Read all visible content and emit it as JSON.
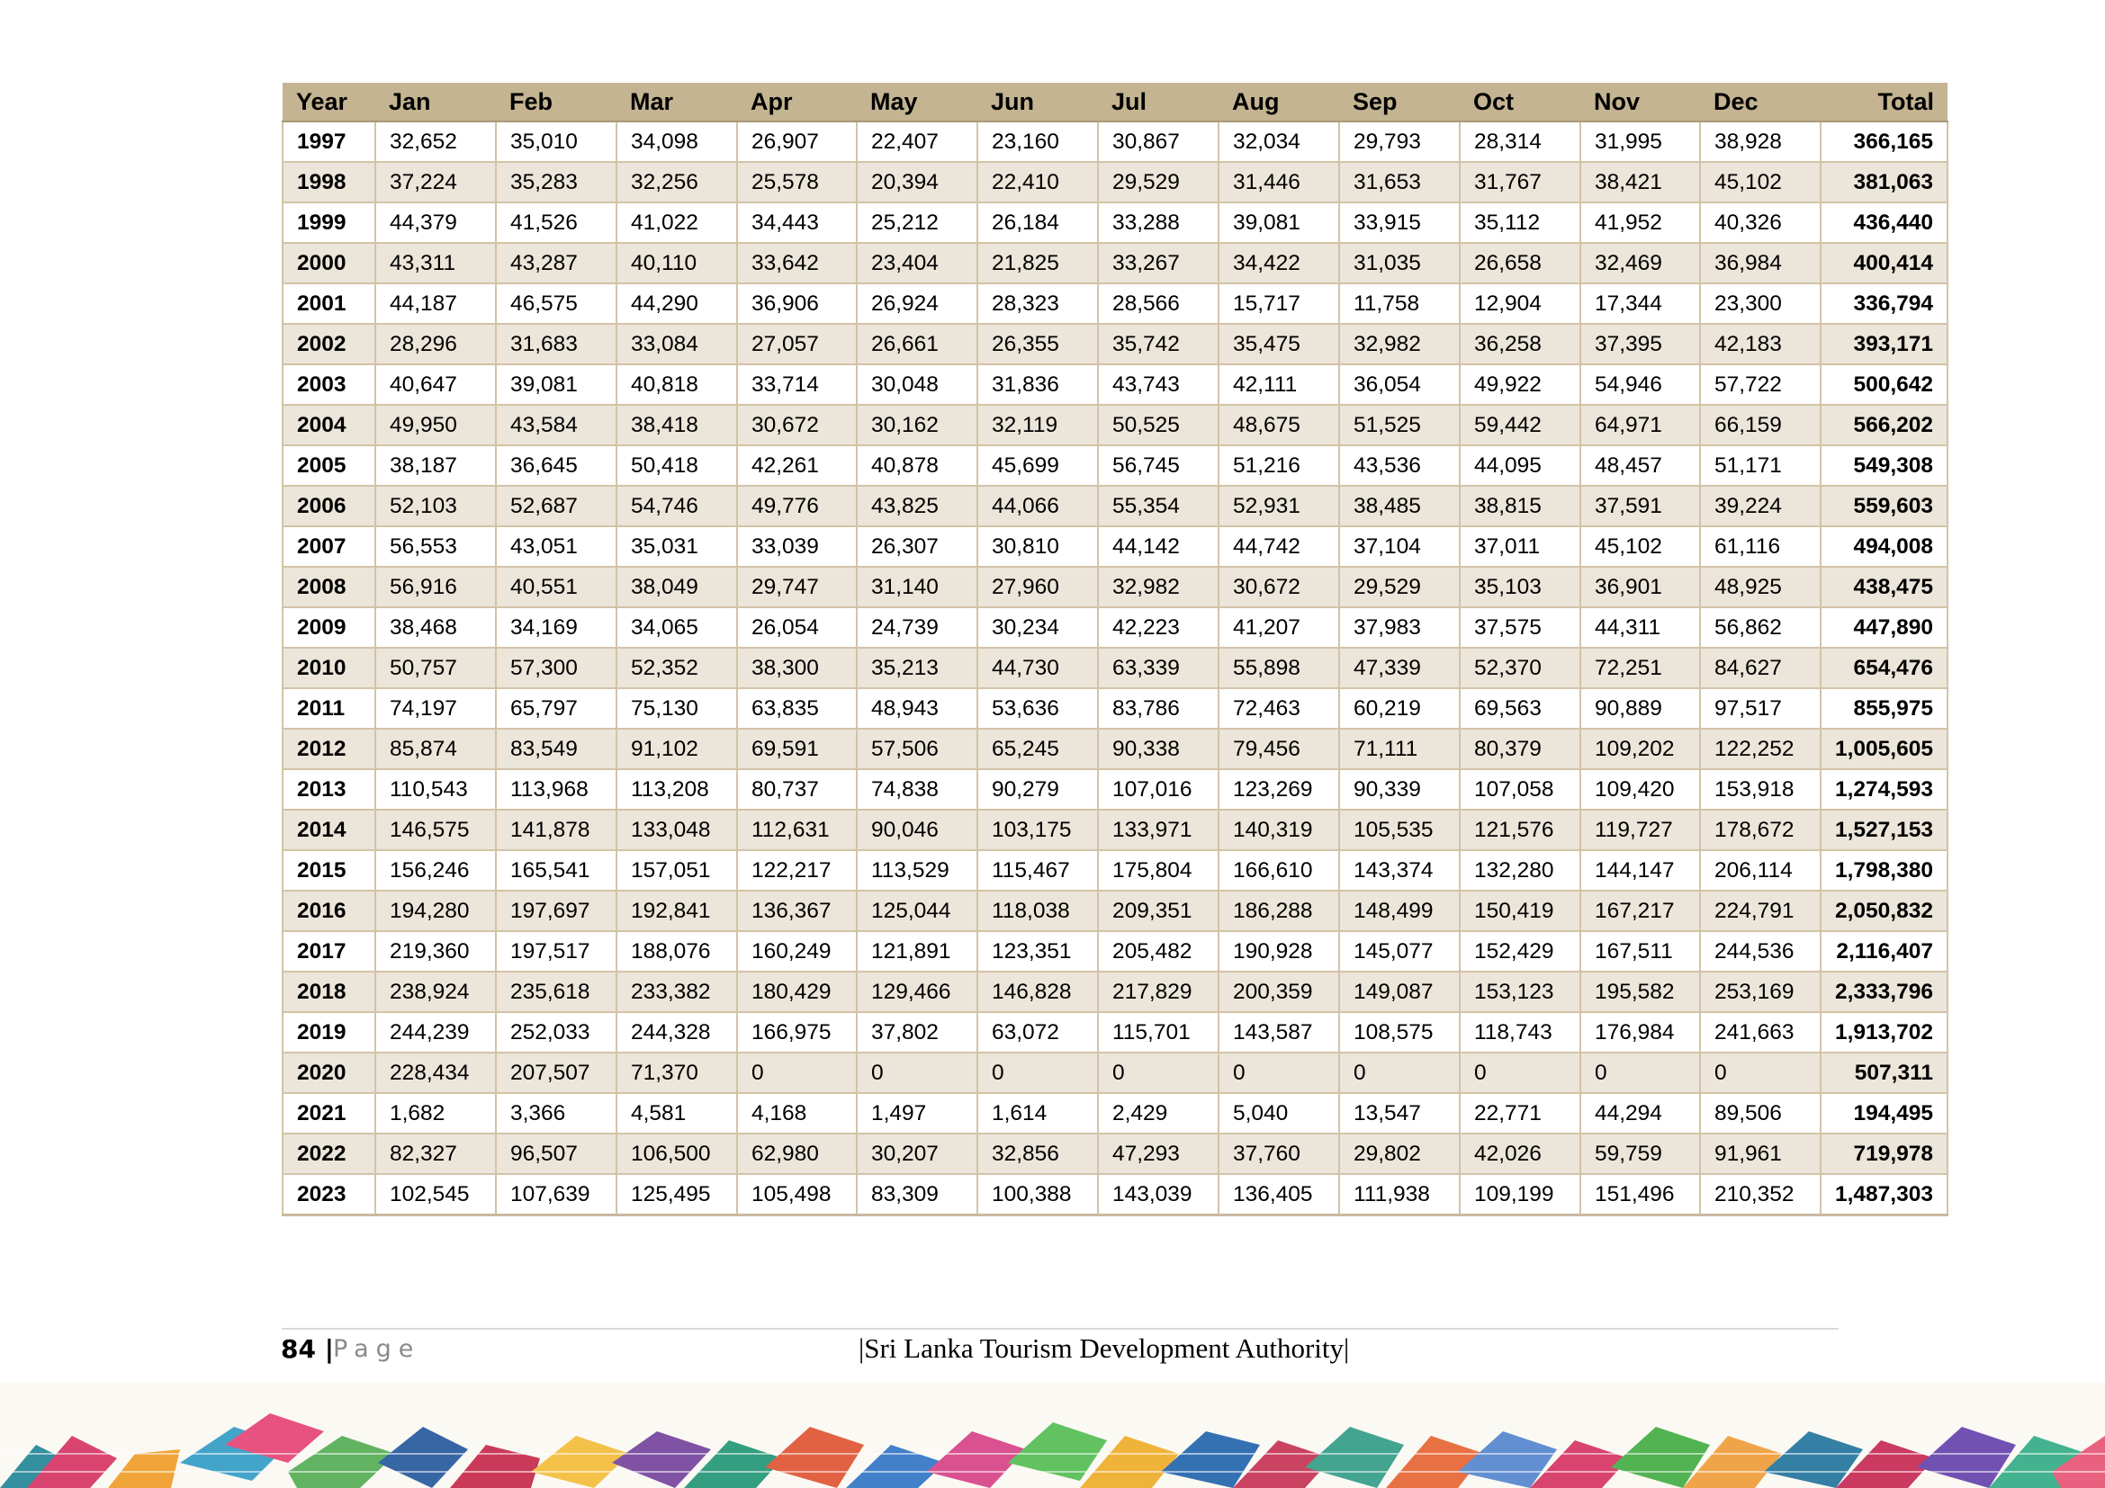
{
  "table": {
    "headers": [
      "Year",
      "Jan",
      "Feb",
      "Mar",
      "Apr",
      "May",
      "Jun",
      "Jul",
      "Aug",
      "Sep",
      "Oct",
      "Nov",
      "Dec",
      "Total"
    ],
    "rows": [
      [
        "1997",
        "32,652",
        "35,010",
        "34,098",
        "26,907",
        "22,407",
        "23,160",
        "30,867",
        "32,034",
        "29,793",
        "28,314",
        "31,995",
        "38,928",
        "366,165"
      ],
      [
        "1998",
        "37,224",
        "35,283",
        "32,256",
        "25,578",
        "20,394",
        "22,410",
        "29,529",
        "31,446",
        "31,653",
        "31,767",
        "38,421",
        "45,102",
        "381,063"
      ],
      [
        "1999",
        "44,379",
        "41,526",
        "41,022",
        "34,443",
        "25,212",
        "26,184",
        "33,288",
        "39,081",
        "33,915",
        "35,112",
        "41,952",
        "40,326",
        "436,440"
      ],
      [
        "2000",
        "43,311",
        "43,287",
        "40,110",
        "33,642",
        "23,404",
        "21,825",
        "33,267",
        "34,422",
        "31,035",
        "26,658",
        "32,469",
        "36,984",
        "400,414"
      ],
      [
        "2001",
        "44,187",
        "46,575",
        "44,290",
        "36,906",
        "26,924",
        "28,323",
        "28,566",
        "15,717",
        "11,758",
        "12,904",
        "17,344",
        "23,300",
        "336,794"
      ],
      [
        "2002",
        "28,296",
        "31,683",
        "33,084",
        "27,057",
        "26,661",
        "26,355",
        "35,742",
        "35,475",
        "32,982",
        "36,258",
        "37,395",
        "42,183",
        "393,171"
      ],
      [
        "2003",
        "40,647",
        "39,081",
        "40,818",
        "33,714",
        "30,048",
        "31,836",
        "43,743",
        "42,111",
        "36,054",
        "49,922",
        "54,946",
        "57,722",
        "500,642"
      ],
      [
        "2004",
        "49,950",
        "43,584",
        "38,418",
        "30,672",
        "30,162",
        "32,119",
        "50,525",
        "48,675",
        "51,525",
        "59,442",
        "64,971",
        "66,159",
        "566,202"
      ],
      [
        "2005",
        "38,187",
        "36,645",
        "50,418",
        "42,261",
        "40,878",
        "45,699",
        "56,745",
        "51,216",
        "43,536",
        "44,095",
        "48,457",
        "51,171",
        "549,308"
      ],
      [
        "2006",
        "52,103",
        "52,687",
        "54,746",
        "49,776",
        "43,825",
        "44,066",
        "55,354",
        "52,931",
        "38,485",
        "38,815",
        "37,591",
        "39,224",
        "559,603"
      ],
      [
        "2007",
        "56,553",
        "43,051",
        "35,031",
        "33,039",
        "26,307",
        "30,810",
        "44,142",
        "44,742",
        "37,104",
        "37,011",
        "45,102",
        "61,116",
        "494,008"
      ],
      [
        "2008",
        "56,916",
        "40,551",
        "38,049",
        "29,747",
        "31,140",
        "27,960",
        "32,982",
        "30,672",
        "29,529",
        "35,103",
        "36,901",
        "48,925",
        "438,475"
      ],
      [
        "2009",
        "38,468",
        "34,169",
        "34,065",
        "26,054",
        "24,739",
        "30,234",
        "42,223",
        "41,207",
        "37,983",
        "37,575",
        "44,311",
        "56,862",
        "447,890"
      ],
      [
        "2010",
        "50,757",
        "57,300",
        "52,352",
        "38,300",
        "35,213",
        "44,730",
        "63,339",
        "55,898",
        "47,339",
        "52,370",
        "72,251",
        "84,627",
        "654,476"
      ],
      [
        "2011",
        "74,197",
        "65,797",
        "75,130",
        "63,835",
        "48,943",
        "53,636",
        "83,786",
        "72,463",
        "60,219",
        "69,563",
        "90,889",
        "97,517",
        "855,975"
      ],
      [
        "2012",
        "85,874",
        "83,549",
        "91,102",
        "69,591",
        "57,506",
        "65,245",
        "90,338",
        "79,456",
        "71,111",
        "80,379",
        "109,202",
        "122,252",
        "1,005,605"
      ],
      [
        "2013",
        "110,543",
        "113,968",
        "113,208",
        "80,737",
        "74,838",
        "90,279",
        "107,016",
        "123,269",
        "90,339",
        "107,058",
        "109,420",
        "153,918",
        "1,274,593"
      ],
      [
        "2014",
        "146,575",
        "141,878",
        "133,048",
        "112,631",
        "90,046",
        "103,175",
        "133,971",
        "140,319",
        "105,535",
        "121,576",
        "119,727",
        "178,672",
        "1,527,153"
      ],
      [
        "2015",
        "156,246",
        "165,541",
        "157,051",
        "122,217",
        "113,529",
        "115,467",
        "175,804",
        "166,610",
        "143,374",
        "132,280",
        "144,147",
        "206,114",
        "1,798,380"
      ],
      [
        "2016",
        "194,280",
        "197,697",
        "192,841",
        "136,367",
        "125,044",
        "118,038",
        "209,351",
        "186,288",
        "148,499",
        "150,419",
        "167,217",
        "224,791",
        "2,050,832"
      ],
      [
        "2017",
        "219,360",
        "197,517",
        "188,076",
        "160,249",
        "121,891",
        "123,351",
        "205,482",
        "190,928",
        "145,077",
        "152,429",
        "167,511",
        "244,536",
        "2,116,407"
      ],
      [
        "2018",
        "238,924",
        "235,618",
        "233,382",
        "180,429",
        "129,466",
        "146,828",
        "217,829",
        "200,359",
        "149,087",
        "153,123",
        "195,582",
        "253,169",
        "2,333,796"
      ],
      [
        "2019",
        "244,239",
        "252,033",
        "244,328",
        "166,975",
        "37,802",
        "63,072",
        "115,701",
        "143,587",
        "108,575",
        "118,743",
        "176,984",
        "241,663",
        "1,913,702"
      ],
      [
        "2020",
        "228,434",
        "207,507",
        "71,370",
        "0",
        "0",
        "0",
        "0",
        "0",
        "0",
        "0",
        "0",
        "0",
        "507,311"
      ],
      [
        "2021",
        "1,682",
        "3,366",
        "4,581",
        "4,168",
        "1,497",
        "1,614",
        "2,429",
        "5,040",
        "13,547",
        "22,771",
        "44,294",
        "89,506",
        "194,495"
      ],
      [
        "2022",
        "82,327",
        "96,507",
        "106,500",
        "62,980",
        "30,207",
        "32,856",
        "47,293",
        "37,760",
        "29,802",
        "42,026",
        "59,759",
        "91,961",
        "719,978"
      ],
      [
        "2023",
        "102,545",
        "107,639",
        "125,495",
        "105,498",
        "83,309",
        "100,388",
        "143,039",
        "136,405",
        "111,938",
        "109,199",
        "151,496",
        "210,352",
        "1,487,303"
      ]
    ]
  },
  "footer": {
    "page_number": "84",
    "separator": "|",
    "page_word": "Page",
    "title": "|Sri Lanka Tourism Development Authority|"
  },
  "colors": {
    "header_bg": "#c4b491",
    "alt_row_bg": "#ebe5da",
    "grid_line": "#d3c3a6"
  }
}
